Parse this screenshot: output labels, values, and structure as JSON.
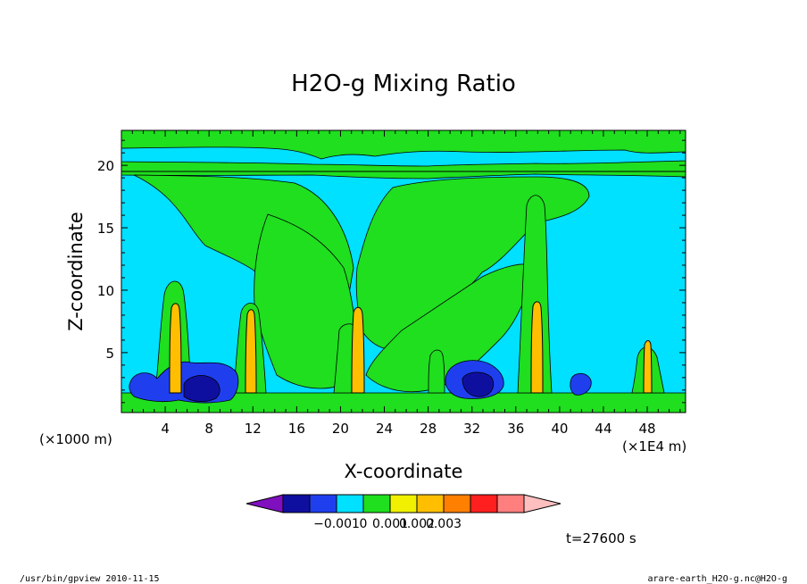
{
  "chart_data": {
    "type": "heatmap",
    "title": "H2O-g Mixing Ratio",
    "xlabel": "X-coordinate",
    "ylabel": "Z-coordinate",
    "x_unit_left": "(×1000 m)",
    "x_unit_right": "(×1E4 m)",
    "xlim": [
      0,
      51.5
    ],
    "ylim": [
      0.2,
      22.8
    ],
    "x_ticks": [
      "4",
      "8",
      "12",
      "16",
      "20",
      "24",
      "28",
      "32",
      "36",
      "40",
      "44",
      "48"
    ],
    "y_ticks": [
      "5",
      "10",
      "15",
      "20"
    ],
    "colorbar": {
      "colors": [
        "#7f0fbf",
        "#0f0f9f",
        "#1f3fef",
        "#00e0ff",
        "#1fdf1f",
        "#f0f000",
        "#ffbf00",
        "#ff7f00",
        "#ff1f1f",
        "#ff7f7f",
        "#ffbfbf"
      ],
      "labels": [
        "−0.001",
        "0",
        "0.001",
        "0.002",
        "0.003"
      ]
    },
    "field": {
      "background_level": "#00e0ff",
      "upper_band_z": [
        19.2,
        22.8
      ],
      "strat_line_z": 20.0,
      "green_regions": "upper band and funnel-shaped outflow descending to z≈5 between x≈8 and x≈44",
      "convective_cores_x": [
        4.7,
        11.8,
        21.5,
        37.5,
        47.8
      ],
      "core_max_z": [
        9.5,
        8.8,
        8.9,
        9.5,
        5.8
      ],
      "negative_pools": [
        {
          "x": [
            0.8,
            12.0
          ],
          "z": [
            1.2,
            5.0
          ]
        },
        {
          "x": [
            29.5,
            35.0
          ],
          "z": [
            1.3,
            4.4
          ]
        },
        {
          "x": [
            41.3,
            42.5
          ],
          "z": [
            1.3,
            3.0
          ]
        }
      ]
    }
  },
  "time_label": "t=27600 s",
  "footer": {
    "left": "/usr/bin/gpview  2010-11-15",
    "right": "arare-earth_H2O-g.nc@H2O-g"
  }
}
